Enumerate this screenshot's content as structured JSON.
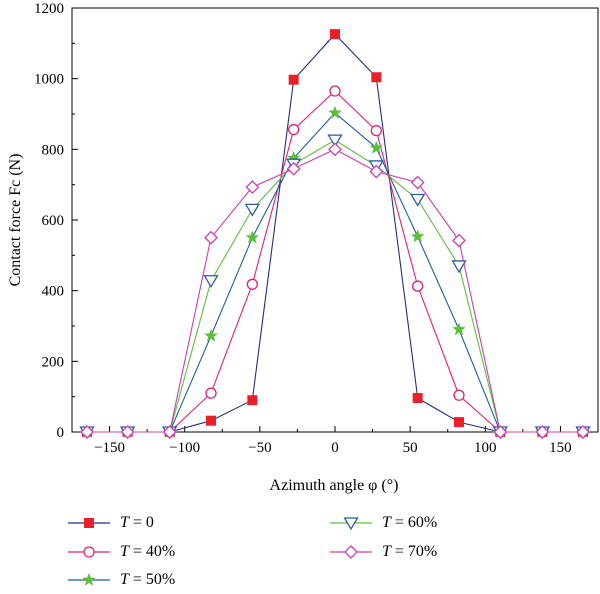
{
  "chart_data": {
    "type": "line",
    "xlabel": "Azimuth angle φ (°)",
    "ylabel": "Contact force Fc (N)",
    "xlim": [
      -175,
      175
    ],
    "ylim": [
      0,
      1200
    ],
    "xticks": [
      -150,
      -100,
      -50,
      0,
      50,
      100,
      150
    ],
    "yticks": [
      0,
      200,
      400,
      600,
      800,
      1000,
      1200
    ],
    "grid": false,
    "legend_position": "bottom",
    "x": [
      -165,
      -138,
      -110,
      -82.5,
      -55,
      -27.5,
      0,
      27.5,
      55,
      82.5,
      110,
      138,
      165
    ],
    "series": [
      {
        "name": "T = 0",
        "var": "T",
        "rest": " = 0",
        "marker": "square",
        "marker_color": "#e8202a",
        "line_color": "#1f2f80",
        "filled": true,
        "values": [
          0,
          0,
          0,
          32,
          90,
          997,
          1126,
          1004,
          96,
          28,
          0,
          0,
          0
        ]
      },
      {
        "name": "T = 40%",
        "var": "T",
        "rest": " = 40%",
        "marker": "circle",
        "marker_color": "#e0207a",
        "line_color": "#e0207a",
        "filled": false,
        "values": [
          0,
          0,
          0,
          110,
          418,
          856,
          965,
          853,
          413,
          104,
          0,
          0,
          0
        ]
      },
      {
        "name": "T = 50%",
        "var": "T",
        "rest": " = 50%",
        "marker": "star",
        "marker_color": "#5cbf3a",
        "line_color": "#1f5fa0",
        "filled": true,
        "values": [
          0,
          0,
          0,
          272,
          550,
          775,
          903,
          804,
          553,
          290,
          0,
          0,
          0
        ]
      },
      {
        "name": "T = 60%",
        "var": "T",
        "rest": " = 60%",
        "marker": "triangle-down",
        "marker_color": "#2c5aa0",
        "line_color": "#5cbf3a",
        "filled": false,
        "values": [
          0,
          0,
          0,
          428,
          630,
          758,
          826,
          753,
          658,
          470,
          0,
          0,
          0
        ]
      },
      {
        "name": "T = 70%",
        "var": "T",
        "rest": " = 70%",
        "marker": "diamond",
        "marker_color": "#cc3fb0",
        "line_color": "#cc3fb0",
        "filled": false,
        "values": [
          0,
          0,
          0,
          550,
          693,
          745,
          800,
          737,
          706,
          542,
          0,
          0,
          0
        ]
      }
    ]
  }
}
